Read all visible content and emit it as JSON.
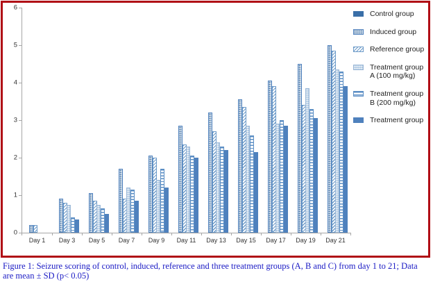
{
  "figure": {
    "caption": "Figure 1: Seizure scoring of control, induced, reference and three treatment groups (A, B and C) from day 1 to 21; Data are mean ± SD (p< 0.05)"
  },
  "colors": {
    "panel_border_red": "#b00d15",
    "axis_gray": "#a6a6a6",
    "bar_blue": "#4f81bd",
    "bar_dark_blue": "#3a6fa8",
    "bar_light_blue": "#afc8e2",
    "caption_blue": "#1a1ac4"
  },
  "chart_data": {
    "type": "bar",
    "title": "",
    "xlabel": "",
    "ylabel": "",
    "ylim": [
      0,
      6
    ],
    "yticks": [
      0,
      1,
      2,
      3,
      4,
      5,
      6
    ],
    "grid": false,
    "legend_position": "right",
    "categories": [
      "Day 1",
      "Day 3",
      "Day 5",
      "Day 7",
      "Day 9",
      "Day 11",
      "Day 13",
      "Day 15",
      "Day 17",
      "Day 19",
      "Day 21"
    ],
    "series": [
      {
        "name": "Control group",
        "pattern": "solid-dark-blue",
        "values": [
          0,
          0,
          0,
          0,
          0,
          0,
          0,
          0,
          0,
          0,
          0
        ]
      },
      {
        "name": "Induced group",
        "pattern": "dense-dots",
        "values": [
          0.2,
          0.9,
          1.05,
          1.7,
          2.05,
          2.85,
          3.2,
          3.55,
          4.05,
          4.5,
          5.0
        ]
      },
      {
        "name": "Reference group",
        "pattern": "diagonal-hatch",
        "values": [
          0.2,
          0.8,
          0.85,
          0.9,
          2.0,
          2.35,
          2.7,
          3.35,
          3.9,
          3.4,
          4.85
        ]
      },
      {
        "name": "Treatment group A (100 mg/kg)",
        "pattern": "light-blue-dots",
        "values": [
          0,
          0.75,
          0.75,
          1.2,
          1.4,
          2.3,
          2.4,
          2.85,
          2.9,
          3.85,
          4.35
        ]
      },
      {
        "name": "Treatment group B (200 mg/kg)",
        "pattern": "horizontal-dashes",
        "values": [
          0,
          0.4,
          0.65,
          1.15,
          1.7,
          2.05,
          2.3,
          2.6,
          3.0,
          3.3,
          4.3
        ]
      },
      {
        "name": "Treatment group",
        "pattern": "solid-blue",
        "values": [
          0,
          0.35,
          0.5,
          0.85,
          1.2,
          2.0,
          2.2,
          2.15,
          2.85,
          3.05,
          3.9
        ]
      }
    ]
  }
}
